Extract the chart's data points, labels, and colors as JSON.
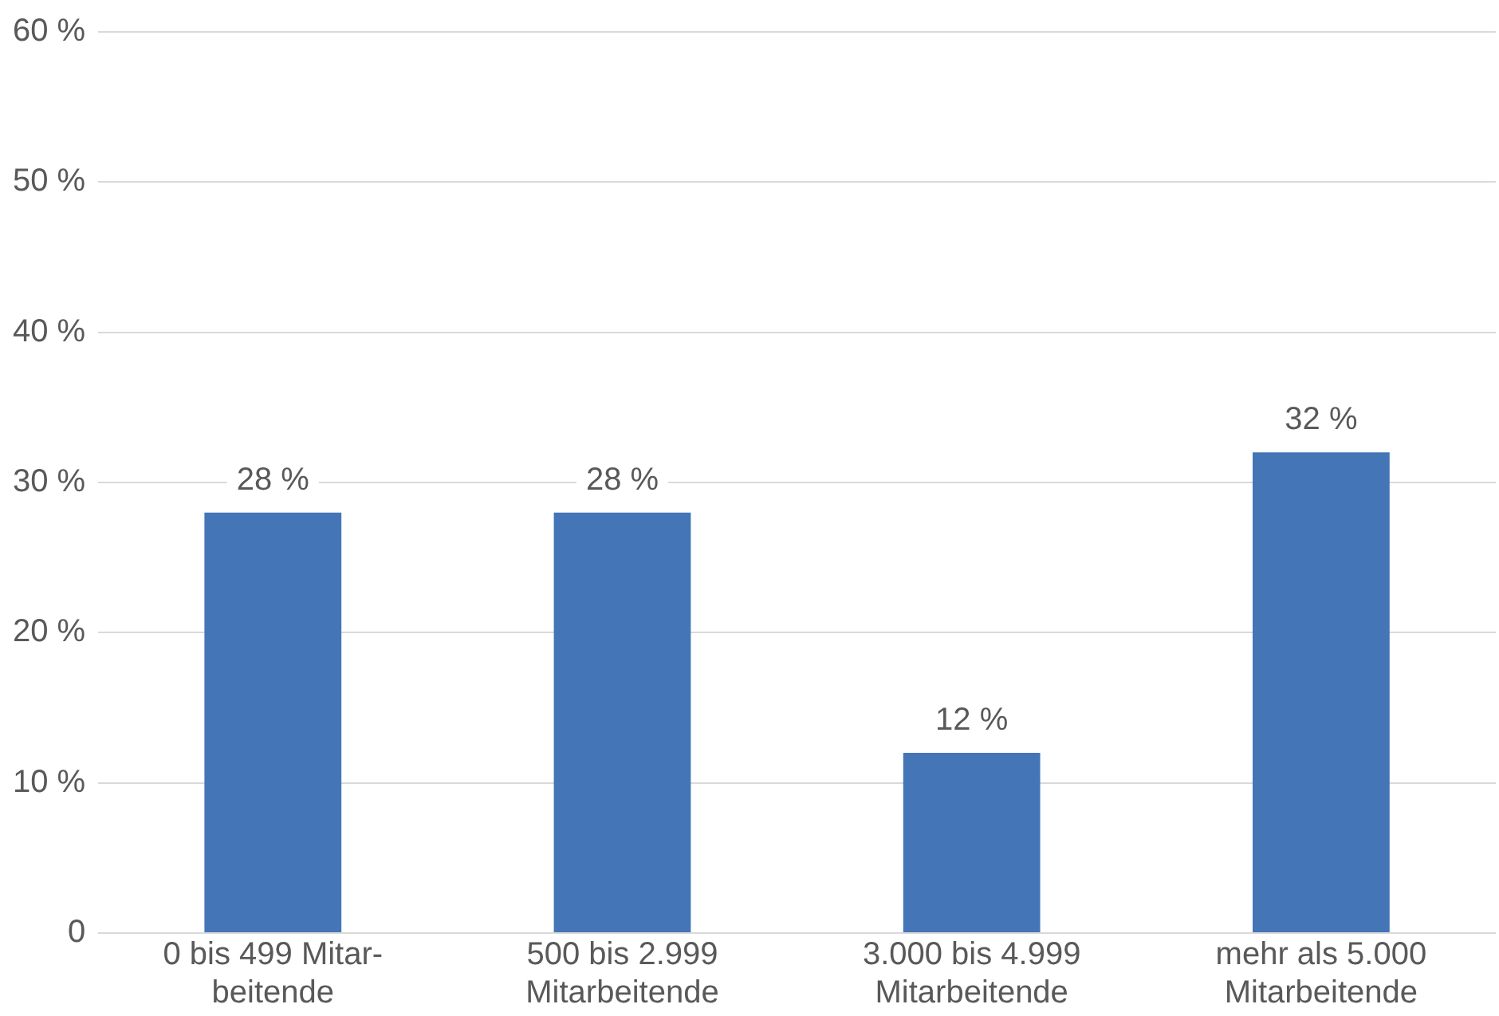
{
  "chart_data": {
    "type": "bar",
    "categories": [
      "0 bis 499 Mitar-\nbeitende",
      "500 bis 2.999\nMitarbeitende",
      "3.000 bis 4.999\nMitarbeitende",
      "mehr als 5.000\nMitarbeitende"
    ],
    "values": [
      28,
      28,
      12,
      32
    ],
    "color": "#4375b7",
    "value_labels": [
      "28 %",
      "28 %",
      "12 %",
      "32 %"
    ],
    "ylim": [
      0,
      60
    ],
    "yticks": [
      {
        "value": 0,
        "label": "0"
      },
      {
        "value": 10,
        "label": "10 %"
      },
      {
        "value": 20,
        "label": "20 %"
      },
      {
        "value": 30,
        "label": "30 %"
      },
      {
        "value": 40,
        "label": "40 %"
      },
      {
        "value": 50,
        "label": "50 %"
      },
      {
        "value": 60,
        "label": "60 %"
      }
    ],
    "grid": "y"
  }
}
